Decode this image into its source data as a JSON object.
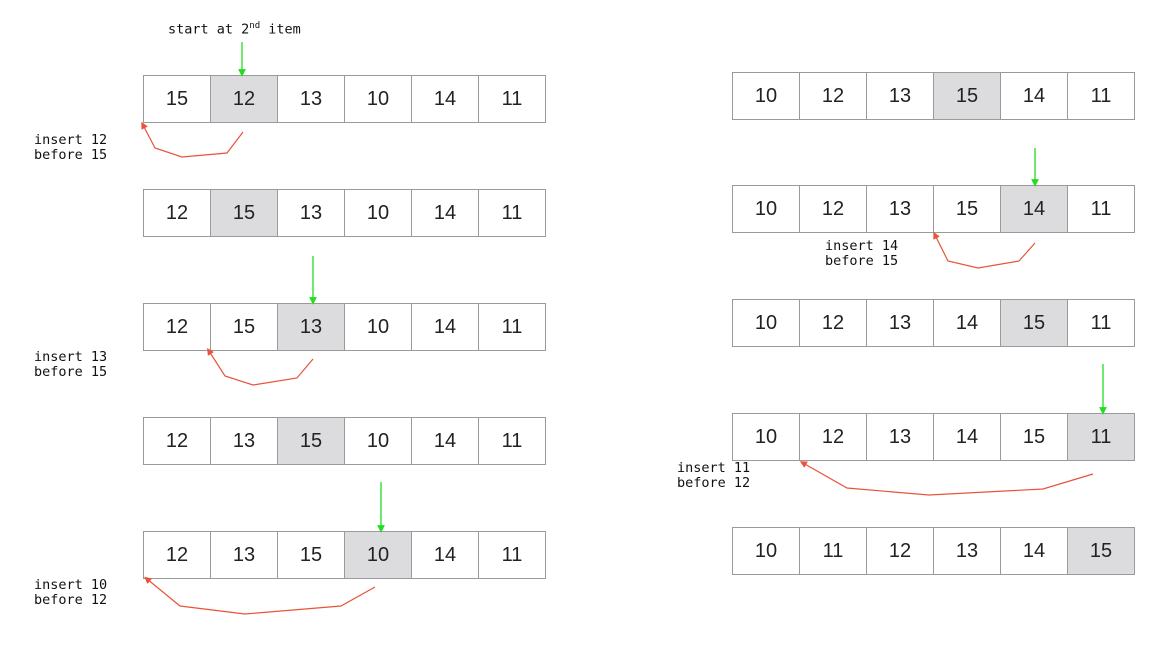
{
  "start_label": {
    "prefix": "start at 2",
    "suffix": "nd",
    "rest": " item"
  },
  "arrays": [
    {
      "values": [
        "15",
        "12",
        "13",
        "10",
        "14",
        "11"
      ],
      "highlight": 1
    },
    {
      "values": [
        "12",
        "15",
        "13",
        "10",
        "14",
        "11"
      ],
      "highlight": 1
    },
    {
      "values": [
        "12",
        "15",
        "13",
        "10",
        "14",
        "11"
      ],
      "highlight": 2
    },
    {
      "values": [
        "12",
        "13",
        "15",
        "10",
        "14",
        "11"
      ],
      "highlight": 2
    },
    {
      "values": [
        "12",
        "13",
        "15",
        "10",
        "14",
        "11"
      ],
      "highlight": 3
    },
    {
      "values": [
        "10",
        "12",
        "13",
        "15",
        "14",
        "11"
      ],
      "highlight": 3
    },
    {
      "values": [
        "10",
        "12",
        "13",
        "15",
        "14",
        "11"
      ],
      "highlight": 4
    },
    {
      "values": [
        "10",
        "12",
        "13",
        "14",
        "15",
        "11"
      ],
      "highlight": 4
    },
    {
      "values": [
        "10",
        "12",
        "13",
        "14",
        "15",
        "11"
      ],
      "highlight": 5
    },
    {
      "values": [
        "10",
        "11",
        "12",
        "13",
        "14",
        "15"
      ],
      "highlight": 5
    }
  ],
  "notes": [
    {
      "line1": "insert 12",
      "line2": "before 15"
    },
    {
      "line1": "insert 13",
      "line2": "before 15"
    },
    {
      "line1": "insert 10",
      "line2": "before 12"
    },
    {
      "line1": "insert 14",
      "line2": "before 15"
    },
    {
      "line1": "insert 11",
      "line2": "before 12"
    }
  ],
  "colors": {
    "highlight_fill": "#dcdcde",
    "cell_border": "#9a9a9a",
    "pointer_arrow": "#22dd22",
    "insert_arrow": "#e8533a"
  }
}
